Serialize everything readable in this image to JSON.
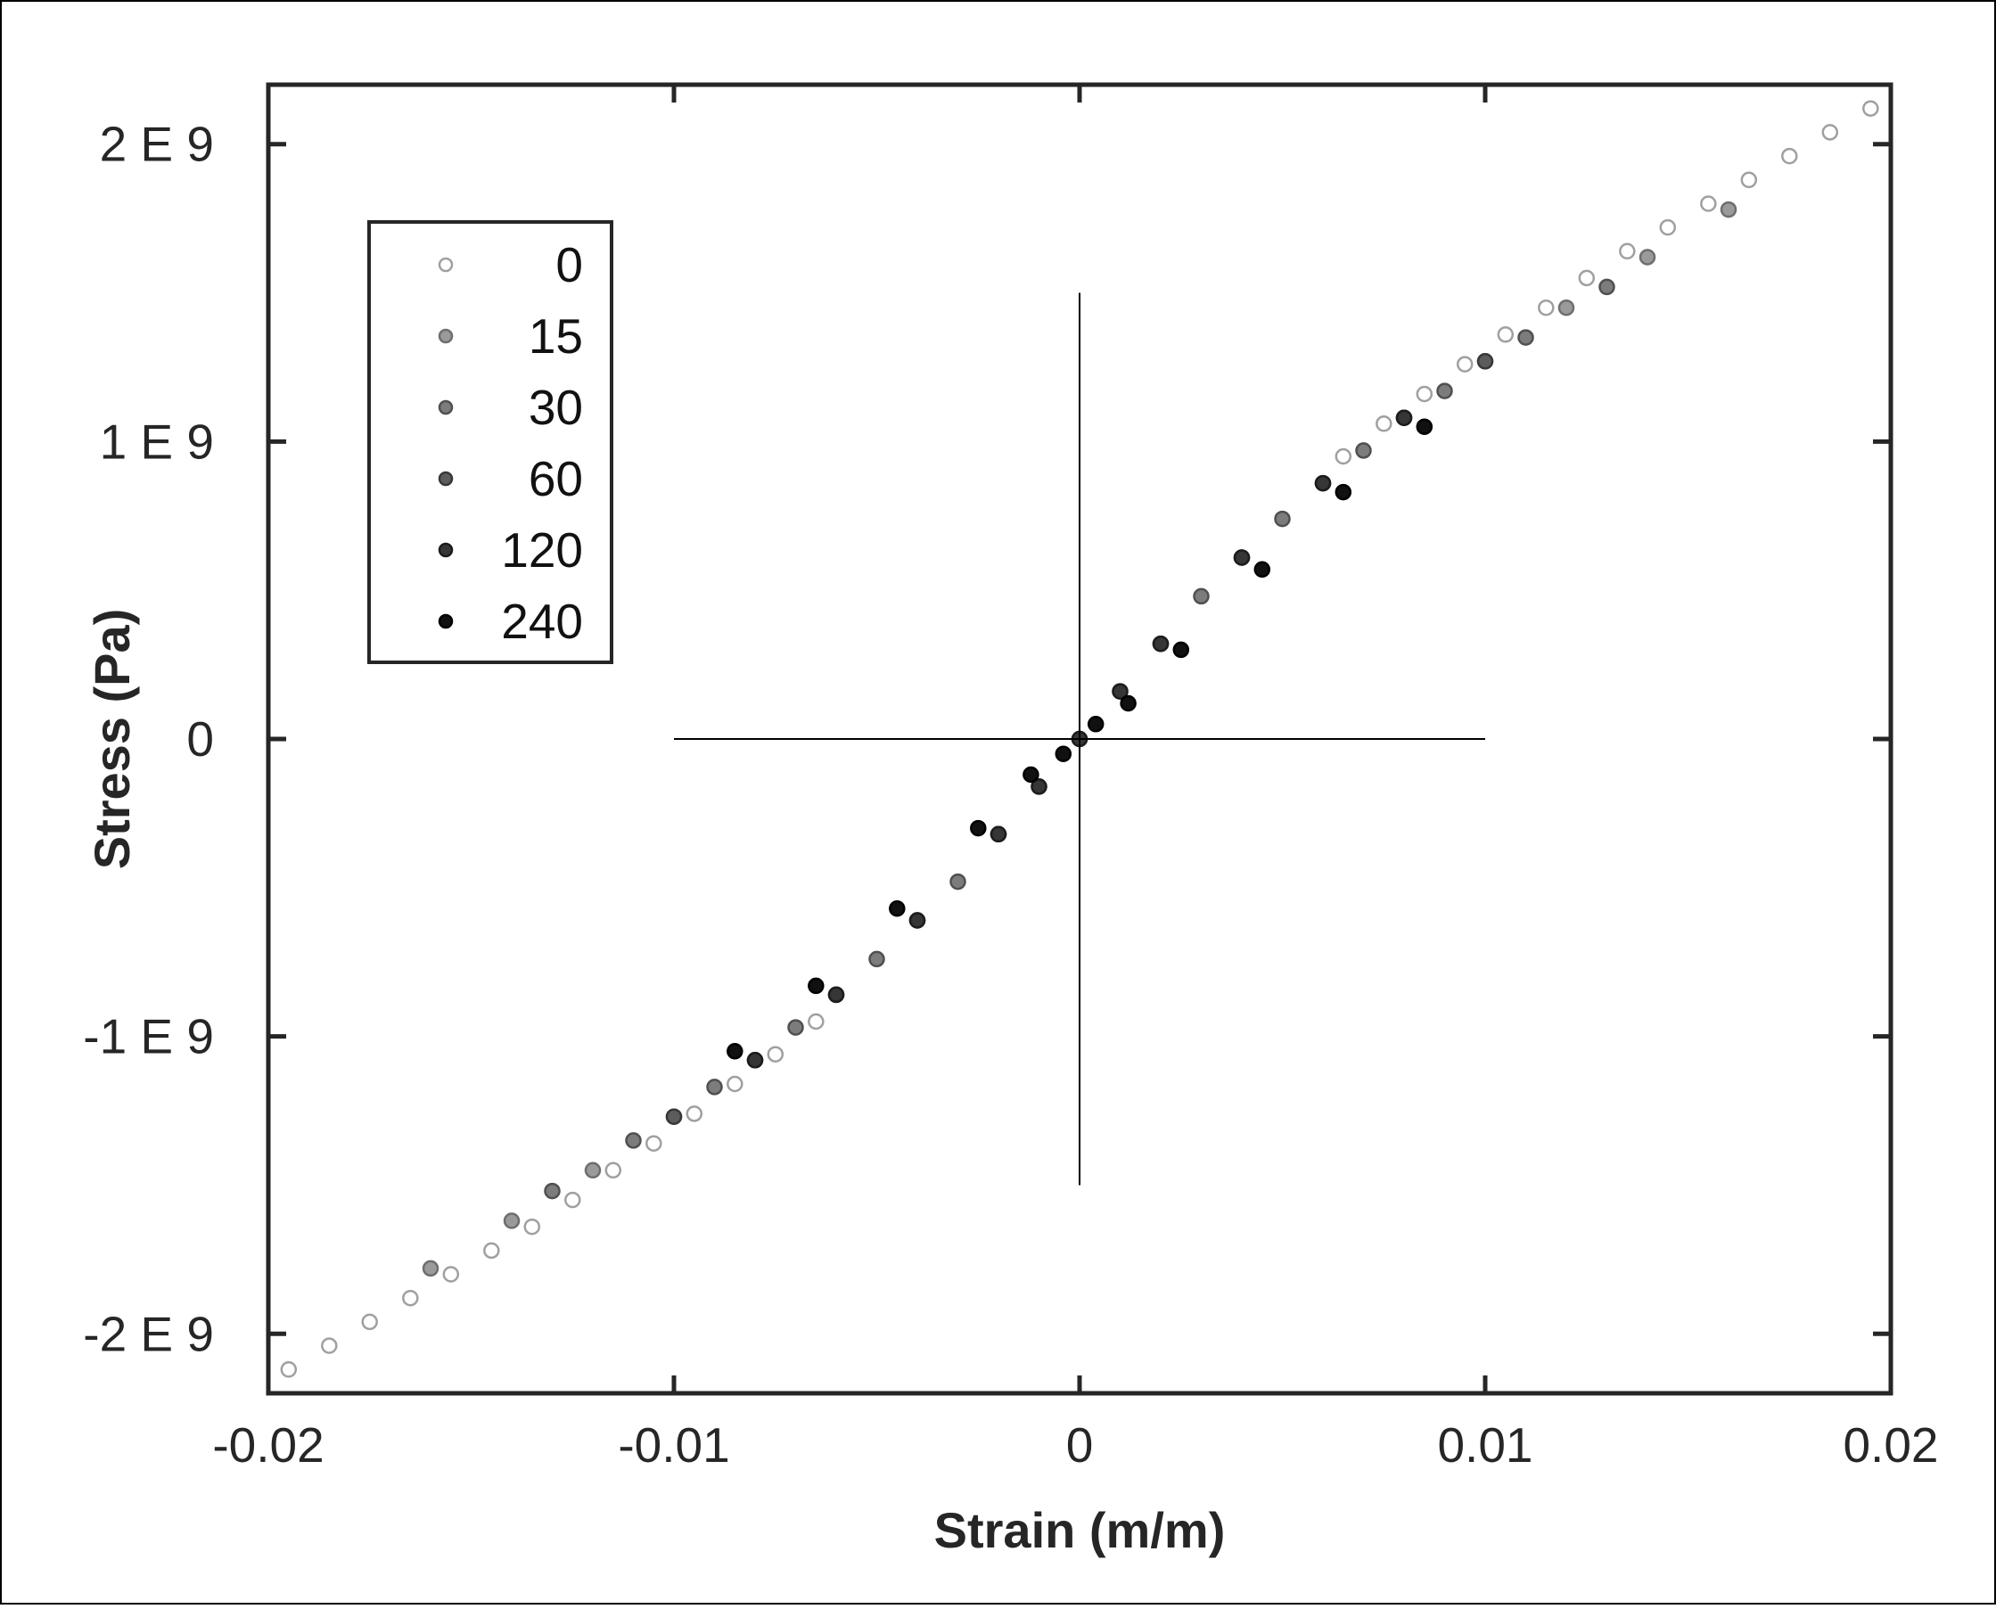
{
  "chart_data": {
    "type": "scatter",
    "title": "",
    "xlabel": "Strain (m/m)",
    "ylabel": "Stress (Pa)",
    "xlim": [
      -0.02,
      0.02
    ],
    "ylim": [
      -2200000000.0,
      2200000000.0
    ],
    "xticks": [
      {
        "value": -0.02,
        "label": "-0.02"
      },
      {
        "value": -0.01,
        "label": "-0.01"
      },
      {
        "value": 0,
        "label": "0"
      },
      {
        "value": 0.01,
        "label": "0.01"
      },
      {
        "value": 0.02,
        "label": "0.02"
      }
    ],
    "yticks": [
      {
        "value": 2000000000.0,
        "label": "2 E 9"
      },
      {
        "value": 1000000000.0,
        "label": "1 E 9"
      },
      {
        "value": 0,
        "label": "0"
      },
      {
        "value": -1000000000.0,
        "label": "-1 E 9"
      },
      {
        "value": -2000000000.0,
        "label": "-2 E 9"
      }
    ],
    "grid": false,
    "legend_position": "upper-left",
    "reference_lines": [
      {
        "orientation": "horizontal",
        "y": 0,
        "x_from": -0.01,
        "x_to": 0.01
      },
      {
        "orientation": "vertical",
        "x": 0,
        "y_from": -1500000000.0,
        "y_to": 1500000000.0
      }
    ],
    "series": [
      {
        "name": "0",
        "fill": "#ffffff",
        "stroke": "#a0a0a0",
        "x": [
          -0.0195,
          -0.0185,
          -0.0175,
          -0.0165,
          -0.0155,
          -0.0145,
          -0.0135,
          -0.0125,
          -0.0115,
          -0.0105,
          -0.0095,
          -0.0085,
          -0.0075,
          -0.0065,
          0.0065,
          0.0075,
          0.0085,
          0.0095,
          0.0105,
          0.0115,
          0.0125,
          0.0135,
          0.0145,
          0.0155,
          0.0165,
          0.0175,
          0.0185,
          0.0195
        ],
        "y": [
          -2120000000.0,
          -2040000000.0,
          -1960000000.0,
          -1880000000.0,
          -1800000000.0,
          -1720000000.0,
          -1640000000.0,
          -1550000000.0,
          -1450000000.0,
          -1360000000.0,
          -1260000000.0,
          -1160000000.0,
          -1060000000.0,
          -950000000.0,
          950000000.0,
          1060000000.0,
          1160000000.0,
          1260000000.0,
          1360000000.0,
          1450000000.0,
          1550000000.0,
          1640000000.0,
          1720000000.0,
          1800000000.0,
          1880000000.0,
          1960000000.0,
          2040000000.0,
          2120000000.0
        ]
      },
      {
        "name": "15",
        "fill": "#9a9a9a",
        "stroke": "#6e6e6e",
        "x": [
          -0.016,
          -0.014,
          -0.012,
          -0.01,
          -0.008,
          -0.006,
          -0.004,
          -0.002,
          0.002,
          0.004,
          0.006,
          0.008,
          0.01,
          0.012,
          0.014,
          0.016
        ],
        "y": [
          -1780000000.0,
          -1620000000.0,
          -1450000000.0,
          -1270000000.0,
          -1080000000.0,
          -860000000.0,
          -610000000.0,
          -320000000.0,
          320000000.0,
          610000000.0,
          860000000.0,
          1080000000.0,
          1270000000.0,
          1450000000.0,
          1620000000.0,
          1780000000.0
        ]
      },
      {
        "name": "30",
        "fill": "#7c7c7c",
        "stroke": "#505050",
        "x": [
          -0.013,
          -0.011,
          -0.009,
          -0.007,
          -0.005,
          -0.003,
          -0.001,
          0.001,
          0.003,
          0.005,
          0.007,
          0.009,
          0.011,
          0.013
        ],
        "y": [
          -1520000000.0,
          -1350000000.0,
          -1170000000.0,
          -970000000.0,
          -740000000.0,
          -480000000.0,
          -160000000.0,
          160000000.0,
          480000000.0,
          740000000.0,
          970000000.0,
          1170000000.0,
          1350000000.0,
          1520000000.0
        ]
      },
      {
        "name": "60",
        "fill": "#5c5c5c",
        "stroke": "#383838",
        "x": [
          -0.01,
          -0.008,
          -0.006,
          -0.004,
          -0.002,
          0,
          0.002,
          0.004,
          0.006,
          0.008,
          0.01
        ],
        "y": [
          -1270000000.0,
          -1080000000.0,
          -860000000.0,
          -610000000.0,
          -320000000.0,
          0,
          320000000.0,
          610000000.0,
          860000000.0,
          1080000000.0,
          1270000000.0
        ]
      },
      {
        "name": "120",
        "fill": "#363636",
        "stroke": "#1c1c1c",
        "x": [
          -0.008,
          -0.006,
          -0.004,
          -0.002,
          -0.001,
          0,
          0.001,
          0.002,
          0.004,
          0.006,
          0.008
        ],
        "y": [
          -1080000000.0,
          -860000000.0,
          -610000000.0,
          -320000000.0,
          -160000000.0,
          0,
          160000000.0,
          320000000.0,
          610000000.0,
          860000000.0,
          1080000000.0
        ]
      },
      {
        "name": "240",
        "fill": "#111111",
        "stroke": "#000000",
        "x": [
          -0.0085,
          -0.0065,
          -0.0045,
          -0.0025,
          -0.0012,
          -0.0004,
          0.0004,
          0.0012,
          0.0025,
          0.0045,
          0.0065,
          0.0085
        ],
        "y": [
          -1050000000.0,
          -830000000.0,
          -570000000.0,
          -300000000.0,
          -120000000.0,
          -50000000.0,
          50000000.0,
          120000000.0,
          300000000.0,
          570000000.0,
          830000000.0,
          1050000000.0
        ]
      }
    ]
  }
}
